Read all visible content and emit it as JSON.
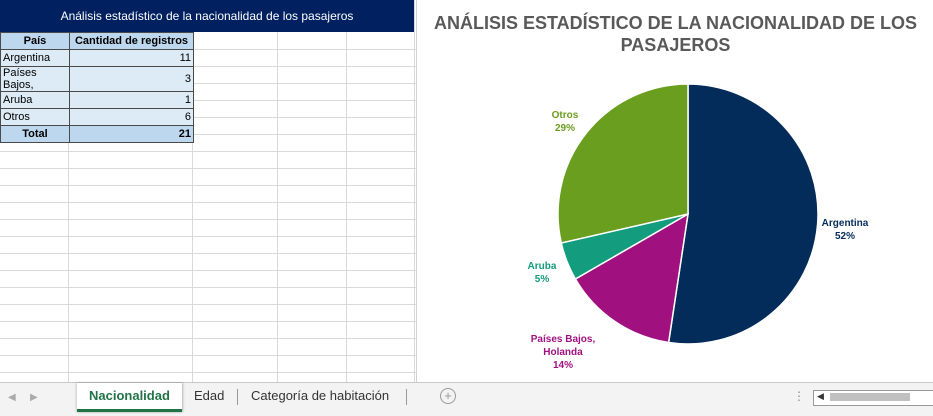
{
  "banner": {
    "title": "Análisis estadístico de la nacionalidad de los pasajeros"
  },
  "table": {
    "headers": [
      "País",
      "Cantidad de registros"
    ],
    "rows": [
      {
        "country": "Argentina",
        "count": "11"
      },
      {
        "country": "Países Bajos,",
        "count": "3"
      },
      {
        "country": "Aruba",
        "count": "1"
      },
      {
        "country": "Otros",
        "count": "6"
      }
    ],
    "total": {
      "label": "Total",
      "count": "21"
    }
  },
  "chart_data": {
    "type": "pie",
    "title": "ANÁLISIS ESTADÍSTICO DE LA NACIONALIDAD DE LOS PASAJEROS",
    "title_lines": [
      "ANÁLISIS ESTADÍSTICO DE LA NACIONALIDAD DE LOS",
      "PASAJEROS"
    ],
    "categories": [
      "Argentina",
      "Países Bajos, Holanda",
      "Aruba",
      "Otros"
    ],
    "values": [
      11,
      3,
      1,
      6
    ],
    "percent_labels": [
      "52%",
      "14%",
      "5%",
      "29%"
    ],
    "label_lines": [
      [
        "Argentina",
        "52%"
      ],
      [
        "Países Bajos,",
        "Holanda",
        "14%"
      ],
      [
        "Aruba",
        "5%"
      ],
      [
        "Otros",
        "29%"
      ]
    ],
    "colors": [
      "#032c5b",
      "#a0117f",
      "#149c7e",
      "#6a9e1f"
    ],
    "legend": "none"
  },
  "sheet_tabs": {
    "tabs": [
      "Nacionalidad",
      "Edad",
      "Categoría de habitación"
    ],
    "active": "Nacionalidad"
  },
  "icons": {
    "prev_sheet": "chevron-left-icon",
    "next_sheet": "chevron-right-icon",
    "add_sheet": "plus-circle-icon",
    "options": "vertical-ellipsis-icon"
  }
}
